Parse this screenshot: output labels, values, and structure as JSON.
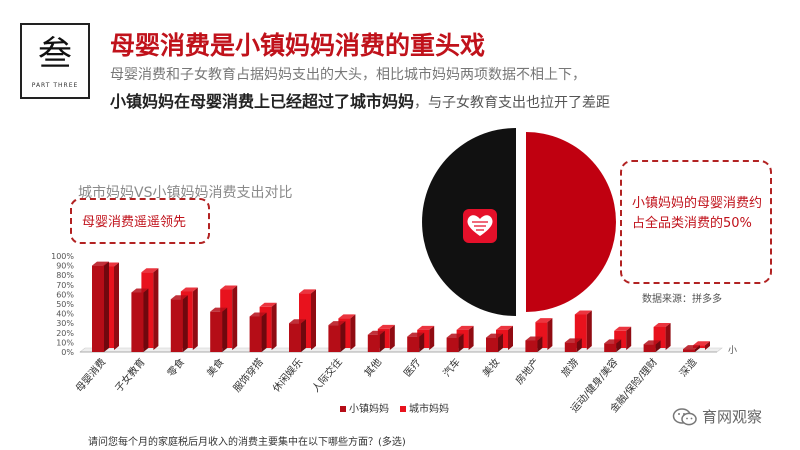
{
  "header": {
    "logo_char": "叁",
    "logo_sub": "PART THREE",
    "title": "母婴消费是小镇妈妈消费的重头戏",
    "subtitle_line1": "母婴消费和子女教育占据妈妈支出的大头，相比城市妈妈两项数据不相上下，",
    "subtitle_line2_highlight": "小镇妈妈在母婴消费上已经超过了城市妈妈",
    "subtitle_line2_rest": "，与子女教育支出也拉开了差距"
  },
  "callout_left": "母婴消费遥遥领先",
  "callout_right": "小镇妈妈的母婴消费约占全品类消费的50%",
  "source": "数据来源：拼多多",
  "footer_question": "请问您每个月的家庭税后月收入的消费主要集中在以下哪些方面？(多选)",
  "wechat_label": "育网观察",
  "colors": {
    "small_town": "#b50d17",
    "city": "#e8121d",
    "title_red": "#c0121b",
    "pie_red": "#c00010",
    "pie_black": "#111111"
  },
  "chart_data": [
    {
      "type": "bar",
      "title": "城市妈妈VS小镇妈妈消费支出对比",
      "categories": [
        "母婴消费",
        "子女教育",
        "零食",
        "美食",
        "服饰穿搭",
        "休闲娱乐",
        "人际交往",
        "其他",
        "医疗",
        "汽车",
        "美妆",
        "房地产",
        "旅游",
        "运动/健身/美容",
        "金融/保险/理财",
        "深造"
      ],
      "series": [
        {
          "name": "小镇妈妈",
          "values": [
            90,
            62,
            55,
            42,
            37,
            30,
            28,
            18,
            16,
            15,
            15,
            12,
            10,
            9,
            8,
            3
          ]
        },
        {
          "name": "城市妈妈",
          "values": [
            87,
            81,
            61,
            63,
            45,
            59,
            33,
            22,
            21,
            21,
            21,
            29,
            37,
            20,
            24,
            5
          ]
        }
      ],
      "yticks": [
        "0%",
        "10%",
        "20%",
        "30%",
        "40%",
        "50%",
        "60%",
        "70%",
        "80%",
        "90%",
        "100%"
      ],
      "ylim": [
        0,
        100
      ],
      "axis_trailing_label": "小",
      "legend_position": "bottom"
    },
    {
      "type": "pie",
      "title": "",
      "slices": [
        {
          "name": "",
          "value": 50,
          "color": "#c00010"
        },
        {
          "name": "",
          "value": 50,
          "color": "#111111"
        }
      ]
    }
  ]
}
